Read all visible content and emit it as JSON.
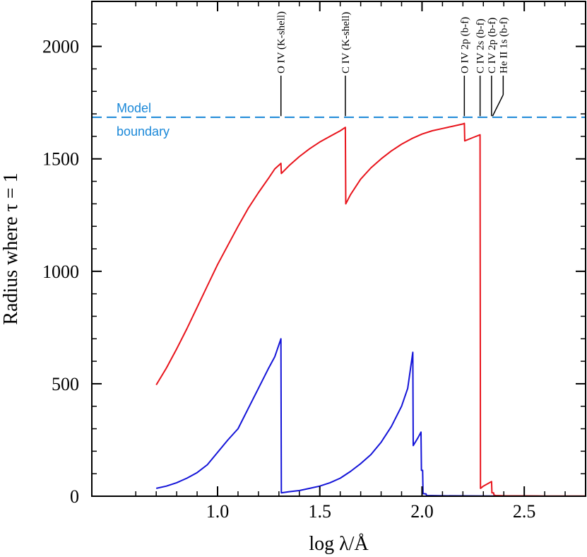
{
  "chart_data": {
    "type": "line",
    "title": "",
    "xlabel": "log λ/Å",
    "ylabel": "Radius where τ = 1",
    "xlim": [
      0.385,
      2.8
    ],
    "ylim": [
      0,
      2200
    ],
    "x_ticks": [
      {
        "value": 1.0,
        "label": "1.0"
      },
      {
        "value": 1.5,
        "label": "1.5"
      },
      {
        "value": 2.0,
        "label": "2.0"
      },
      {
        "value": 2.5,
        "label": "2.5"
      }
    ],
    "y_ticks": [
      {
        "value": 0,
        "label": "0"
      },
      {
        "value": 500,
        "label": "500"
      },
      {
        "value": 1000,
        "label": "1000"
      },
      {
        "value": 1500,
        "label": "1500"
      },
      {
        "value": 2000,
        "label": "2000"
      }
    ],
    "boundary": {
      "y": 1685,
      "label_line1": "Model",
      "label_line2": "boundary",
      "color": "#1a88d8"
    },
    "edges": [
      {
        "label": "O IV (K-shell)",
        "x": 1.31,
        "tick_top": 1870,
        "tick_bottom": 1690
      },
      {
        "label": "C IV (K-shell)",
        "x": 1.625,
        "tick_top": 1870,
        "tick_bottom": 1690
      },
      {
        "label": "O IV 2p (b-f)",
        "x": 2.207,
        "tick_top": 1870,
        "tick_bottom": 1690
      },
      {
        "label": "C IV 2s (b-f)",
        "x": 2.284,
        "tick_top": 1870,
        "tick_bottom": 1690
      },
      {
        "label": "C IV 2p (b-f)",
        "x": 2.34,
        "tick_top": 1870,
        "tick_bottom": 1690
      },
      {
        "label": "He II 1s (b-f)",
        "x": 2.397,
        "tick_top": 1870,
        "tick_bottom": 1785,
        "leader_to_x": 2.345,
        "leader_to_y": 1690
      }
    ],
    "series": [
      {
        "color": "#e8141c",
        "points": [
          [
            0.7,
            495
          ],
          [
            0.75,
            570
          ],
          [
            0.8,
            655
          ],
          [
            0.85,
            745
          ],
          [
            0.9,
            840
          ],
          [
            0.95,
            935
          ],
          [
            1.0,
            1030
          ],
          [
            1.05,
            1115
          ],
          [
            1.1,
            1200
          ],
          [
            1.15,
            1280
          ],
          [
            1.2,
            1350
          ],
          [
            1.25,
            1415
          ],
          [
            1.28,
            1455
          ],
          [
            1.31,
            1480
          ],
          [
            1.312,
            1435
          ],
          [
            1.35,
            1470
          ],
          [
            1.4,
            1510
          ],
          [
            1.45,
            1545
          ],
          [
            1.5,
            1575
          ],
          [
            1.55,
            1600
          ],
          [
            1.6,
            1625
          ],
          [
            1.625,
            1640
          ],
          [
            1.627,
            1300
          ],
          [
            1.65,
            1340
          ],
          [
            1.7,
            1410
          ],
          [
            1.75,
            1460
          ],
          [
            1.8,
            1500
          ],
          [
            1.85,
            1535
          ],
          [
            1.9,
            1565
          ],
          [
            1.95,
            1590
          ],
          [
            2.0,
            1610
          ],
          [
            2.05,
            1625
          ],
          [
            2.1,
            1635
          ],
          [
            2.15,
            1645
          ],
          [
            2.2,
            1655
          ],
          [
            2.207,
            1658
          ],
          [
            2.209,
            1580
          ],
          [
            2.25,
            1595
          ],
          [
            2.284,
            1607
          ],
          [
            2.286,
            35
          ],
          [
            2.3,
            45
          ],
          [
            2.33,
            60
          ],
          [
            2.34,
            65
          ],
          [
            2.342,
            15
          ],
          [
            2.35,
            15
          ],
          [
            2.352,
            5
          ],
          [
            2.36,
            3
          ],
          [
            2.4,
            2
          ],
          [
            2.6,
            1
          ],
          [
            2.8,
            1
          ]
        ]
      },
      {
        "color": "#1414d8",
        "points": [
          [
            0.7,
            35
          ],
          [
            0.75,
            45
          ],
          [
            0.8,
            60
          ],
          [
            0.85,
            80
          ],
          [
            0.9,
            105
          ],
          [
            0.95,
            140
          ],
          [
            1.0,
            195
          ],
          [
            1.05,
            250
          ],
          [
            1.1,
            300
          ],
          [
            1.15,
            390
          ],
          [
            1.2,
            480
          ],
          [
            1.25,
            570
          ],
          [
            1.28,
            620
          ],
          [
            1.31,
            700
          ],
          [
            1.312,
            15
          ],
          [
            1.35,
            20
          ],
          [
            1.4,
            25
          ],
          [
            1.45,
            35
          ],
          [
            1.5,
            45
          ],
          [
            1.55,
            60
          ],
          [
            1.6,
            80
          ],
          [
            1.65,
            110
          ],
          [
            1.7,
            145
          ],
          [
            1.75,
            185
          ],
          [
            1.8,
            240
          ],
          [
            1.85,
            310
          ],
          [
            1.9,
            400
          ],
          [
            1.93,
            480
          ],
          [
            1.955,
            640
          ],
          [
            1.957,
            225
          ],
          [
            1.98,
            260
          ],
          [
            1.995,
            285
          ],
          [
            1.997,
            115
          ],
          [
            2.003,
            115
          ],
          [
            2.005,
            12
          ],
          [
            2.02,
            10
          ],
          [
            2.022,
            3
          ],
          [
            2.1,
            2
          ],
          [
            2.35,
            1
          ],
          [
            2.36,
            0
          ]
        ]
      }
    ]
  }
}
